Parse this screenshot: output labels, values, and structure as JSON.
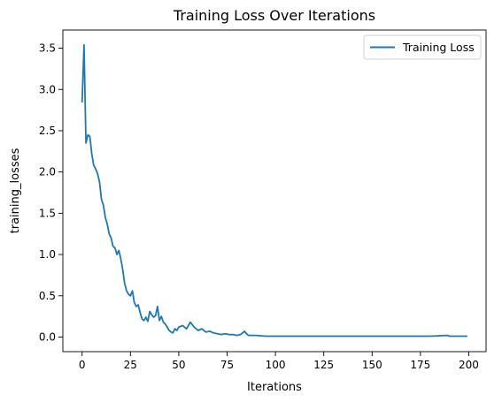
{
  "chart_data": {
    "type": "line",
    "title": "Training Loss Over Iterations",
    "xlabel": "Iterations",
    "ylabel": "training_losses",
    "xlim": [
      -9.95,
      208.95
    ],
    "ylim": [
      -0.177,
      3.72
    ],
    "xticks": [
      0,
      25,
      50,
      75,
      100,
      125,
      150,
      175,
      200
    ],
    "yticks": [
      0.0,
      0.5,
      1.0,
      1.5,
      2.0,
      2.5,
      3.0,
      3.5
    ],
    "ytick_labels": [
      "0.0",
      "0.5",
      "1.0",
      "1.5",
      "2.0",
      "2.5",
      "3.0",
      "3.5"
    ],
    "grid": false,
    "legend": {
      "position": "top-right",
      "entries": [
        "Training Loss"
      ]
    },
    "series": [
      {
        "name": "Training Loss",
        "color": "#1f77b4",
        "x": [
          0,
          1,
          2,
          3,
          4,
          5,
          6,
          7,
          8,
          9,
          10,
          11,
          12,
          13,
          14,
          15,
          16,
          17,
          18,
          19,
          20,
          21,
          22,
          23,
          24,
          25,
          26,
          27,
          28,
          29,
          30,
          31,
          32,
          33,
          34,
          35,
          36,
          37,
          38,
          39,
          40,
          41,
          42,
          43,
          44,
          45,
          46,
          47,
          48,
          49,
          50,
          52,
          54,
          56,
          58,
          60,
          62,
          64,
          66,
          68,
          70,
          72,
          74,
          76,
          78,
          80,
          82,
          84,
          85,
          86,
          88,
          90,
          95,
          100,
          110,
          120,
          130,
          140,
          150,
          160,
          170,
          180,
          189,
          190,
          195,
          199
        ],
        "y": [
          2.85,
          3.54,
          2.35,
          2.45,
          2.43,
          2.22,
          2.08,
          2.04,
          1.98,
          1.88,
          1.67,
          1.6,
          1.45,
          1.37,
          1.25,
          1.2,
          1.1,
          1.08,
          1.0,
          1.05,
          0.95,
          0.82,
          0.65,
          0.56,
          0.52,
          0.5,
          0.56,
          0.42,
          0.37,
          0.39,
          0.3,
          0.22,
          0.2,
          0.24,
          0.19,
          0.31,
          0.27,
          0.24,
          0.26,
          0.37,
          0.2,
          0.25,
          0.18,
          0.16,
          0.12,
          0.08,
          0.06,
          0.05,
          0.1,
          0.08,
          0.12,
          0.14,
          0.1,
          0.18,
          0.12,
          0.08,
          0.1,
          0.06,
          0.07,
          0.05,
          0.04,
          0.03,
          0.04,
          0.03,
          0.03,
          0.02,
          0.03,
          0.07,
          0.04,
          0.02,
          0.02,
          0.02,
          0.01,
          0.01,
          0.01,
          0.01,
          0.01,
          0.01,
          0.01,
          0.01,
          0.01,
          0.01,
          0.02,
          0.01,
          0.01,
          0.01
        ]
      }
    ]
  }
}
